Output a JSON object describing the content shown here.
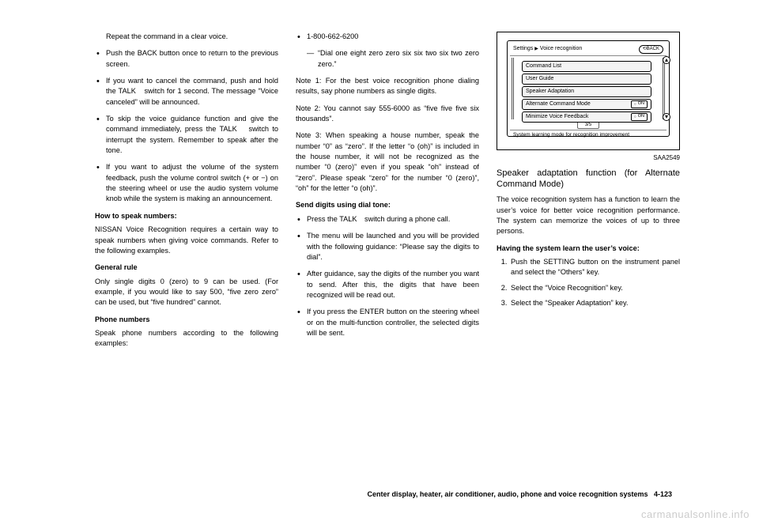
{
  "col1": {
    "items": [
      "Repeat the command in a clear voice.",
      "Push the BACK button once to return to the previous screen.",
      "If you want to cancel the command, push and hold the TALK    switch for 1 second. The message “Voice canceled” will be announced.",
      "To skip the voice guidance function and give the command immediately, press the TALK    switch to interrupt the system. Remember to speak after the tone.",
      "If you want to adjust the volume of the system feedback, push the volume control switch (+ or −) on the steering wheel or use the audio system volume knob while the system is making an announcement."
    ],
    "h1": "How to speak numbers:",
    "p1": "NISSAN Voice Recognition requires a certain way to speak numbers when giving voice commands. Refer to the following examples.",
    "h2": "General rule",
    "p2": "Only single digits 0 (zero) to 9 can be used. (For example, if you would like to say 500, “five zero zero” can be used, but “five hundred” cannot.",
    "h3": "Phone numbers",
    "p3": "Speak phone numbers according to the following examples:"
  },
  "col2": {
    "b1": "1-800-662-6200",
    "b1sub": "“Dial one eight zero zero six six two six two zero zero.”",
    "note1": "Note 1: For the best voice recognition phone dialing results, say phone numbers as single digits.",
    "note2": "Note 2: You cannot say 555-6000 as “five five five six thousands”.",
    "note3": "Note 3: When speaking a house number, speak the number “0” as “zero”. If the letter “o (oh)” is included in the house number, it will not be recognized as the number “0 (zero)” even if you speak “oh” instead of “zero”. Please speak “zero” for the number “0 (zero)”, “oh” for the letter “o (oh)”.",
    "h1": "Send digits using dial tone:",
    "items": [
      "Press the TALK    switch during a phone call.",
      "The menu will be launched and you will be provided with the following guidance: “Please say the digits to dial”.",
      "After guidance, say the digits of the number you want to send. After this, the digits that have been recognized will be read out.",
      "If you press the ENTER button on the steering wheel or on the multi-function controller, the selected digits will be sent."
    ]
  },
  "col3": {
    "screen": {
      "breadcrumb_a": "Settings",
      "breadcrumb_b": "Voice recognition",
      "back": "BACK",
      "menu": [
        {
          "label": "Command List",
          "on": false
        },
        {
          "label": "User Guide",
          "on": false
        },
        {
          "label": "Speaker Adaptation",
          "on": false
        },
        {
          "label": "Alternate Command Mode",
          "on": true
        },
        {
          "label": "Minimize Voice Feedback",
          "on": true
        }
      ],
      "page": "3/5",
      "status": "System learning mode for recognition improvement",
      "figid": "SAA2549"
    },
    "title": "Speaker adaptation function (for Alternate Command Mode)",
    "p1": "The voice recognition system has a function to learn the user’s voice for better voice recognition performance. The system can memorize the voices of up to three persons.",
    "h1": "Having the system learn the user’s voice:",
    "steps": [
      "Push the SETTING button on the instrument panel and select the “Others” key.",
      "Select the “Voice Recognition” key.",
      "Select the “Speaker Adaptation” key."
    ]
  },
  "footer": "Center display, heater, air conditioner, audio, phone and voice recognition systems   4-123",
  "watermark": "carmanualsonline.info"
}
